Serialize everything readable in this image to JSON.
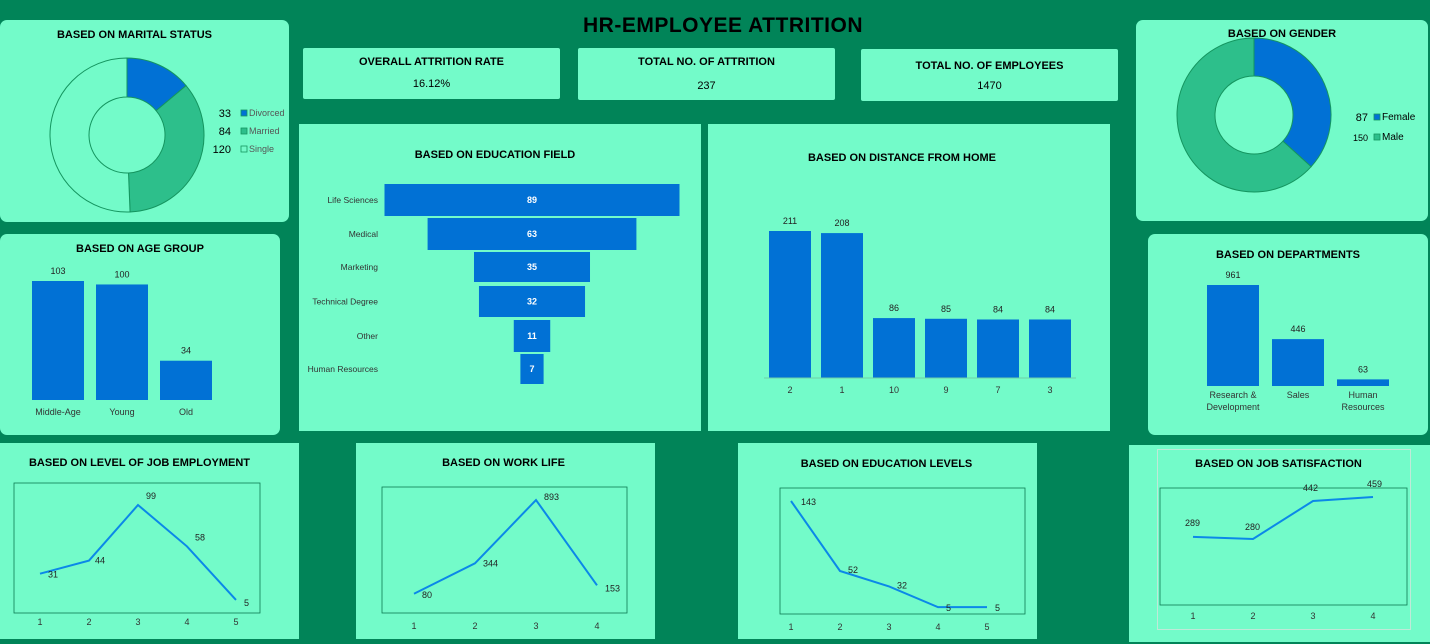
{
  "title": "HR-EMPLOYEE ATTRITION",
  "colors": {
    "background": "#018458",
    "panel": "#73fbc9",
    "bar": "#0171d5",
    "divorced": "#0171d5",
    "married": "#2dbf8b",
    "single": "#73fbc9",
    "female": "#0171d5",
    "male": "#2dbf8b",
    "line": "#0b88e8",
    "plot_border": "#0d7a52"
  },
  "kpis": [
    {
      "title": "OVERALL ATTRITION RATE",
      "value": "16.12%"
    },
    {
      "title": "TOTAL NO. OF ATTRITION",
      "value": "237"
    },
    {
      "title": "TOTAL NO. OF EMPLOYEES",
      "value": "1470"
    }
  ],
  "chart_data": [
    {
      "id": "marital",
      "type": "pie",
      "title": "BASED ON MARITAL STATUS",
      "categories": [
        "Divorced",
        "Married",
        "Single"
      ],
      "values": [
        33,
        84,
        120
      ],
      "legend": "right"
    },
    {
      "id": "gender",
      "type": "pie",
      "title": "BASED ON GENDER",
      "categories": [
        "Female",
        "Male"
      ],
      "values": [
        87,
        150
      ],
      "legend": "right"
    },
    {
      "id": "age",
      "type": "bar",
      "title": "BASED ON AGE GROUP",
      "categories": [
        "Middle-Age",
        "Young",
        "Old"
      ],
      "values": [
        103,
        100,
        34
      ]
    },
    {
      "id": "edufield",
      "type": "bar",
      "orientation": "funnel",
      "title": "BASED ON EDUCATION FIELD",
      "categories": [
        "Life Sciences",
        "Medical",
        "Marketing",
        "Technical Degree",
        "Other",
        "Human Resources"
      ],
      "values": [
        89,
        63,
        35,
        32,
        11,
        7
      ]
    },
    {
      "id": "distance",
      "type": "bar",
      "title": "BASED ON DISTANCE FROM  HOME",
      "categories": [
        "2",
        "1",
        "10",
        "9",
        "7",
        "3"
      ],
      "values": [
        211,
        208,
        86,
        85,
        84,
        84
      ]
    },
    {
      "id": "departments",
      "type": "bar",
      "title": "BASED ON DEPARTMENTS",
      "categories": [
        [
          "Research &",
          "Development"
        ],
        [
          "Sales"
        ],
        [
          "Human",
          "Resources"
        ]
      ],
      "values": [
        961,
        446,
        63
      ]
    },
    {
      "id": "joblevel",
      "type": "line",
      "title": "BASED ON LEVEL OF JOB EMPLOYMENT",
      "x": [
        "1",
        "2",
        "3",
        "4",
        "5"
      ],
      "values": [
        31,
        44,
        99,
        58,
        5
      ]
    },
    {
      "id": "worklife",
      "type": "line",
      "title": "BASED ON WORK LIFE",
      "x": [
        "1",
        "2",
        "3",
        "4"
      ],
      "values": [
        80,
        344,
        893,
        153
      ]
    },
    {
      "id": "edulevel",
      "type": "line",
      "title": "BASED ON EDUCATION LEVELS",
      "x": [
        "1",
        "2",
        "3",
        "4",
        "5"
      ],
      "values": [
        143,
        52,
        32,
        5,
        5
      ]
    },
    {
      "id": "jobsat",
      "type": "line",
      "title": "BASED ON JOB SATISFACTION",
      "x": [
        "1",
        "2",
        "3",
        "4"
      ],
      "values": [
        289,
        280,
        442,
        459
      ]
    }
  ]
}
